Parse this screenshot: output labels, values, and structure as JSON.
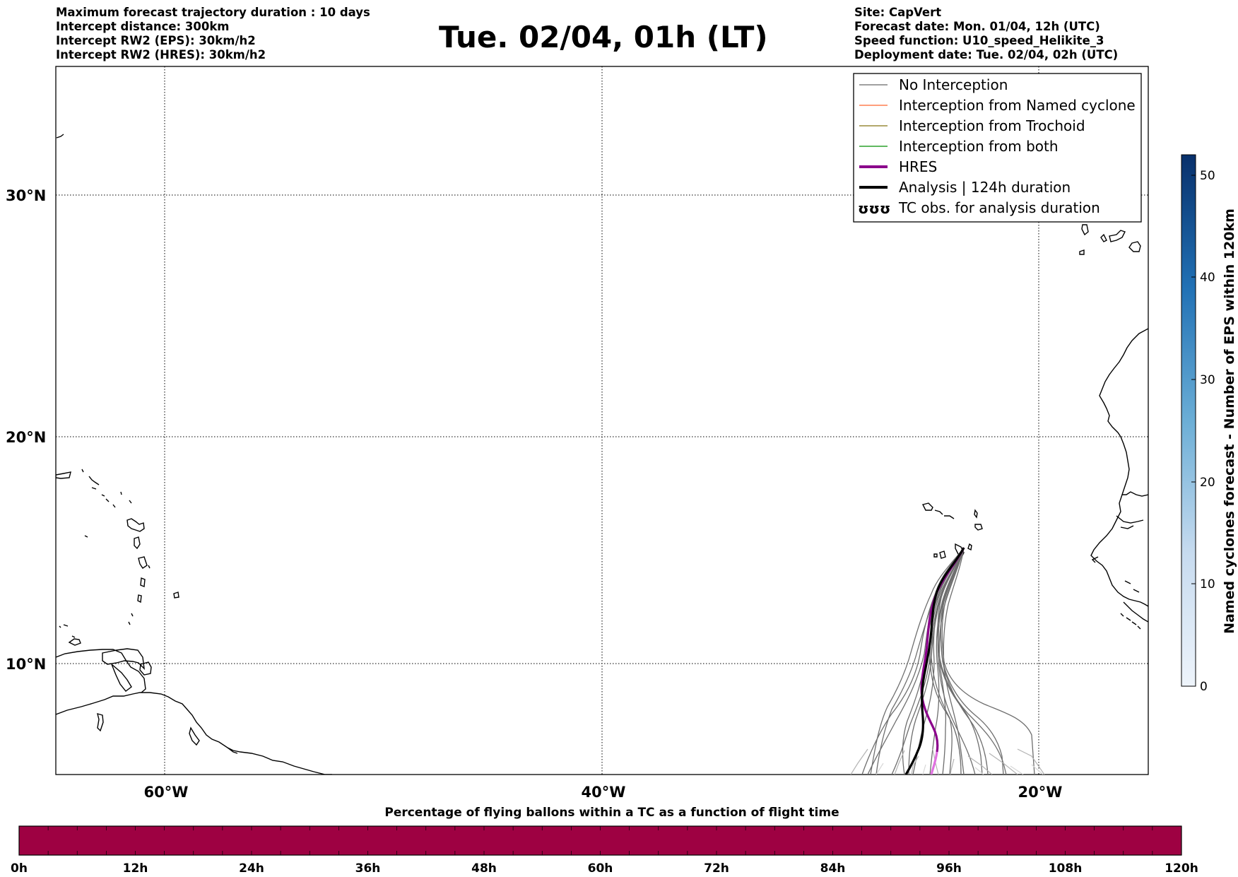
{
  "header": {
    "left_lines": [
      "Maximum forecast trajectory duration : 10 days",
      "Intercept distance: 300km",
      "Intercept RW2 (EPS):  30km/h2",
      "Intercept RW2 (HRES): 30km/h2"
    ],
    "title": "Tue. 02/04, 01h (LT)",
    "right_lines": [
      "Site: CapVert",
      "Forecast date: Mon. 01/04, 12h (UTC)",
      "Speed function: U10_speed_Helikite_3",
      "Deployment date: Tue. 02/04, 02h (UTC)"
    ]
  },
  "map": {
    "lat_labels": [
      "30°N",
      "20°N",
      "10°N"
    ],
    "lon_labels": [
      "60°W",
      "40°W",
      "20°W"
    ],
    "gridlines": "dotted"
  },
  "legend": {
    "entries": [
      {
        "label": "No Interception",
        "color": "#808080",
        "style": "thin"
      },
      {
        "label": "Interception from Named cyclone",
        "color": "#ff7f50",
        "style": "thin"
      },
      {
        "label": "Interception from Trochoid",
        "color": "#9a8c3a",
        "style": "thin"
      },
      {
        "label": "Interception from both",
        "color": "#2ca02c",
        "style": "thin"
      },
      {
        "label": "HRES",
        "color": "#8b008b",
        "style": "thick"
      },
      {
        "label": "Analysis | 124h duration",
        "color": "#000000",
        "style": "thick"
      },
      {
        "label": "TC obs. for analysis duration",
        "color": "#000000",
        "style": "symbol",
        "symbol": "ʊʊʊ"
      }
    ]
  },
  "colorbar_right": {
    "label": "Named cyclones forecast - Number of EPS within 120km",
    "ticks": [
      "0",
      "10",
      "20",
      "30",
      "40",
      "50"
    ],
    "range": [
      0,
      52
    ],
    "color_low": "#e3eef9",
    "color_high": "#08306b"
  },
  "colorbar_bottom": {
    "title": "Percentage of flying ballons within a TC as a function of flight time",
    "ticks": [
      "0h",
      "12h",
      "24h",
      "36h",
      "48h",
      "60h",
      "72h",
      "84h",
      "96h",
      "108h",
      "120h"
    ],
    "fill_color": "#9e0142"
  }
}
